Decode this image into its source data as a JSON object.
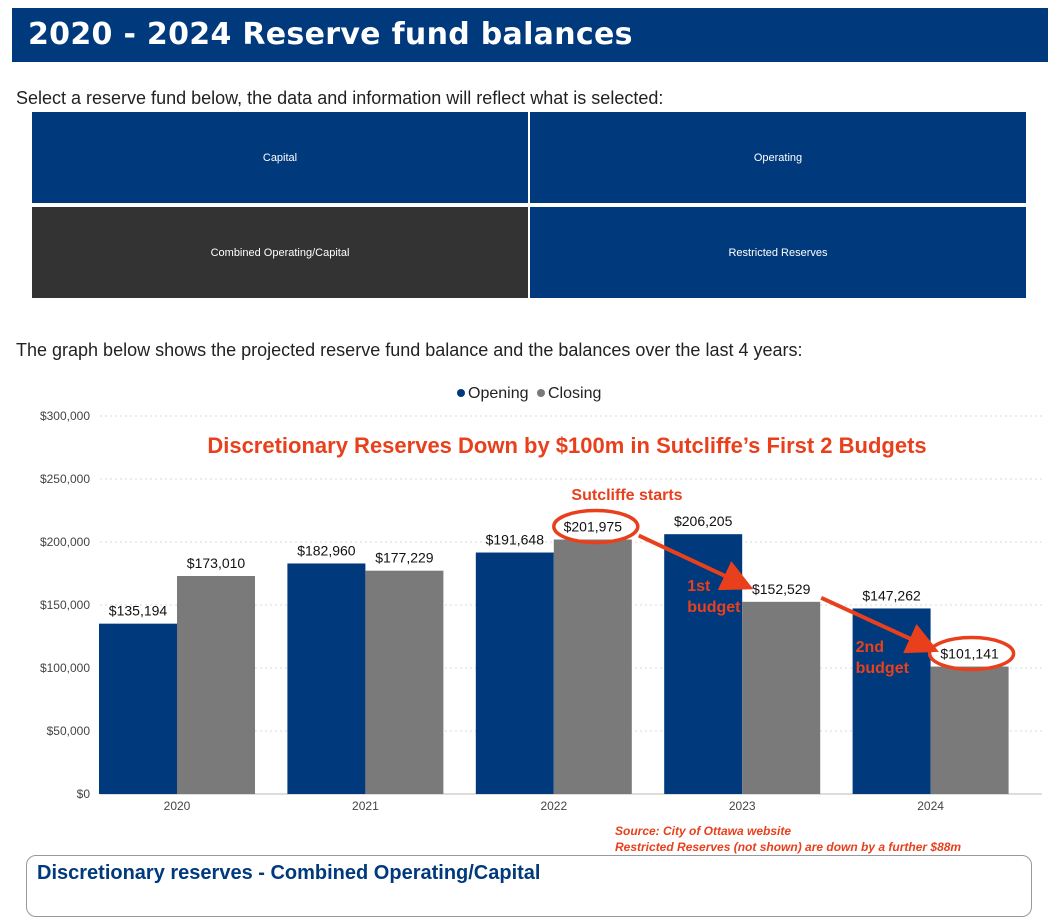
{
  "header": {
    "title": "2020 - 2024 Reserve fund balances"
  },
  "intro_text": "Select a reserve fund below, the data and information will reflect what is selected:",
  "tiles": [
    {
      "label": "Capital",
      "selected": false
    },
    {
      "label": "Operating",
      "selected": false
    },
    {
      "label": "Combined Operating/Capital",
      "selected": true
    },
    {
      "label": "Restricted Reserves",
      "selected": false
    }
  ],
  "graph_intro": "The graph below shows the projected reserve fund balance and the balances over the last 4 years:",
  "colors": {
    "opening": "#003a7d",
    "closing": "#7a7a7a",
    "annotation": "#e8401c"
  },
  "chart_data": {
    "type": "bar",
    "categories": [
      "2020",
      "2021",
      "2022",
      "2023",
      "2024"
    ],
    "series": [
      {
        "name": "Opening",
        "values": [
          135194,
          182960,
          191648,
          206205,
          147262
        ]
      },
      {
        "name": "Closing",
        "values": [
          173010,
          177229,
          201975,
          152529,
          101141
        ]
      }
    ],
    "data_labels": {
      "Opening": [
        "$135,194",
        "$182,960",
        "$191,648",
        "$206,205",
        "$147,262"
      ],
      "Closing": [
        "$173,010",
        "$177,229",
        "$201,975",
        "$152,529",
        "$101,141"
      ]
    },
    "y_ticks": [
      0,
      50000,
      100000,
      150000,
      200000,
      250000,
      300000
    ],
    "y_tick_labels": [
      "$0",
      "$50,000",
      "$100,000",
      "$150,000",
      "$200,000",
      "$250,000",
      "$300,000"
    ],
    "ylim": [
      0,
      300000
    ],
    "grid": true,
    "legend_position": "top-center",
    "annotations": {
      "headline": "Discretionary Reserves Down by $100m in Sutcliffe’s First 2 Budgets",
      "start_label": "Sutcliffe starts",
      "budget1": [
        "1st",
        "budget"
      ],
      "budget2": [
        "2nd",
        "budget"
      ]
    }
  },
  "source_lines": [
    "Source: City of Ottawa website",
    "Restricted Reserves (not shown) are down by a further $88m"
  ],
  "panel": {
    "title": "Discretionary reserves - Combined Operating/Capital"
  }
}
